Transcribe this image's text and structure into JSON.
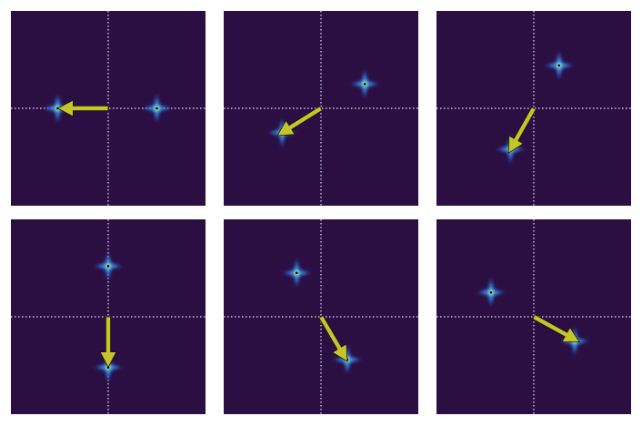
{
  "colors": {
    "background": "#2c0f42",
    "crosshair": "#e6e6ff",
    "arrow_fill": "#c5c52a",
    "arrow_outline": "#111111",
    "spot_core": "#ffe600",
    "spot_inner": "#7ff0b0",
    "spot_mid": "#3a78e0",
    "spot_outer": "#1f4fb0",
    "spot_center_dot": "#000000"
  },
  "panels": [
    {
      "id": "top-left",
      "spots": [
        [
          -0.52,
          0.0
        ],
        [
          0.5,
          0.0
        ]
      ],
      "arrow": {
        "from": [
          0.0,
          0.0
        ],
        "to": [
          -0.52,
          0.0
        ]
      }
    },
    {
      "id": "top-middle",
      "spots": [
        [
          0.45,
          0.25
        ],
        [
          -0.4,
          -0.25
        ]
      ],
      "arrow": {
        "from": [
          0.0,
          0.0
        ],
        "to": [
          -0.45,
          -0.28
        ]
      }
    },
    {
      "id": "top-right",
      "spots": [
        [
          0.26,
          0.44
        ],
        [
          -0.24,
          -0.42
        ]
      ],
      "arrow": {
        "from": [
          0.0,
          0.0
        ],
        "to": [
          -0.26,
          -0.46
        ]
      }
    },
    {
      "id": "bottom-left",
      "spots": [
        [
          0.0,
          0.52
        ],
        [
          0.0,
          -0.52
        ]
      ],
      "arrow": {
        "from": [
          0.0,
          0.0
        ],
        "to": [
          0.0,
          -0.52
        ]
      }
    },
    {
      "id": "bottom-middle",
      "spots": [
        [
          -0.25,
          0.45
        ],
        [
          0.27,
          -0.44
        ]
      ],
      "arrow": {
        "from": [
          0.0,
          0.0
        ],
        "to": [
          0.27,
          -0.46
        ]
      }
    },
    {
      "id": "bottom-right",
      "spots": [
        [
          -0.44,
          0.25
        ],
        [
          0.42,
          -0.25
        ]
      ],
      "arrow": {
        "from": [
          0.0,
          0.0
        ],
        "to": [
          0.47,
          -0.26
        ]
      }
    }
  ]
}
